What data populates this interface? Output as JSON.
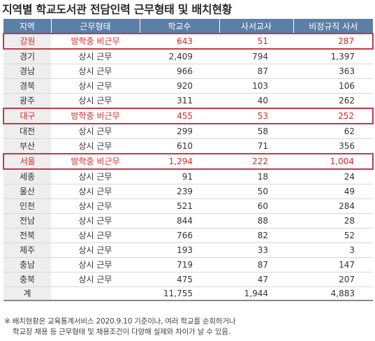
{
  "title": "지역별 학교도서관 전담인력 근무형태 및 배치현황",
  "headers": [
    "지역",
    "근무형태",
    "학교수",
    "사서교사",
    "비정규직 사서"
  ],
  "rows": [
    {
      "region": "강원",
      "type": "방학중 비근무",
      "schools": "643",
      "librarians": "51",
      "irregular": "287",
      "highlight": true
    },
    {
      "region": "경기",
      "type": "상시 근무",
      "schools": "2,409",
      "librarians": "794",
      "irregular": "1,397",
      "highlight": false
    },
    {
      "region": "경남",
      "type": "상시 근무",
      "schools": "966",
      "librarians": "87",
      "irregular": "363",
      "highlight": false
    },
    {
      "region": "경북",
      "type": "상시 근무",
      "schools": "920",
      "librarians": "103",
      "irregular": "106",
      "highlight": false
    },
    {
      "region": "광주",
      "type": "상시 근무",
      "schools": "311",
      "librarians": "40",
      "irregular": "262",
      "highlight": false
    },
    {
      "region": "대구",
      "type": "방학중 비근무",
      "schools": "455",
      "librarians": "53",
      "irregular": "252",
      "highlight": true
    },
    {
      "region": "대전",
      "type": "상시 근무",
      "schools": "299",
      "librarians": "58",
      "irregular": "62",
      "highlight": false
    },
    {
      "region": "부산",
      "type": "상시 근무",
      "schools": "610",
      "librarians": "71",
      "irregular": "356",
      "highlight": false
    },
    {
      "region": "서울",
      "type": "방학중 비근무",
      "schools": "1,294",
      "librarians": "222",
      "irregular": "1,004",
      "highlight": true
    },
    {
      "region": "세종",
      "type": "상시 근무",
      "schools": "91",
      "librarians": "18",
      "irregular": "24",
      "highlight": false
    },
    {
      "region": "울산",
      "type": "상시 근무",
      "schools": "239",
      "librarians": "50",
      "irregular": "49",
      "highlight": false
    },
    {
      "region": "인천",
      "type": "상시 근무",
      "schools": "521",
      "librarians": "60",
      "irregular": "284",
      "highlight": false
    },
    {
      "region": "전남",
      "type": "상시 근무",
      "schools": "844",
      "librarians": "88",
      "irregular": "28",
      "highlight": false
    },
    {
      "region": "전북",
      "type": "상시 근무",
      "schools": "766",
      "librarians": "82",
      "irregular": "52",
      "highlight": false
    },
    {
      "region": "제주",
      "type": "상시 근무",
      "schools": "193",
      "librarians": "33",
      "irregular": "3",
      "highlight": false
    },
    {
      "region": "충남",
      "type": "상시 근무",
      "schools": "719",
      "librarians": "87",
      "irregular": "147",
      "highlight": false
    },
    {
      "region": "충북",
      "type": "상시 근무",
      "schools": "475",
      "librarians": "47",
      "irregular": "207",
      "highlight": false
    }
  ],
  "total": {
    "region": "계",
    "type": "",
    "schools": "11,755",
    "librarians": "1,944",
    "irregular": "4,883"
  },
  "footnote": [
    "※ 배치현황은 교육통계서비스 2020.9.10 기준이나, 여러 학교를 순회하거나",
    "학교장 채용 등 근무형태 및 채용조건이 다양해 실제와 차이가 날 수 있음."
  ],
  "colors": {
    "header_bg": "#5b7fa6",
    "highlight_text": "#d42a2a",
    "highlight_border": "#c03a4a"
  }
}
